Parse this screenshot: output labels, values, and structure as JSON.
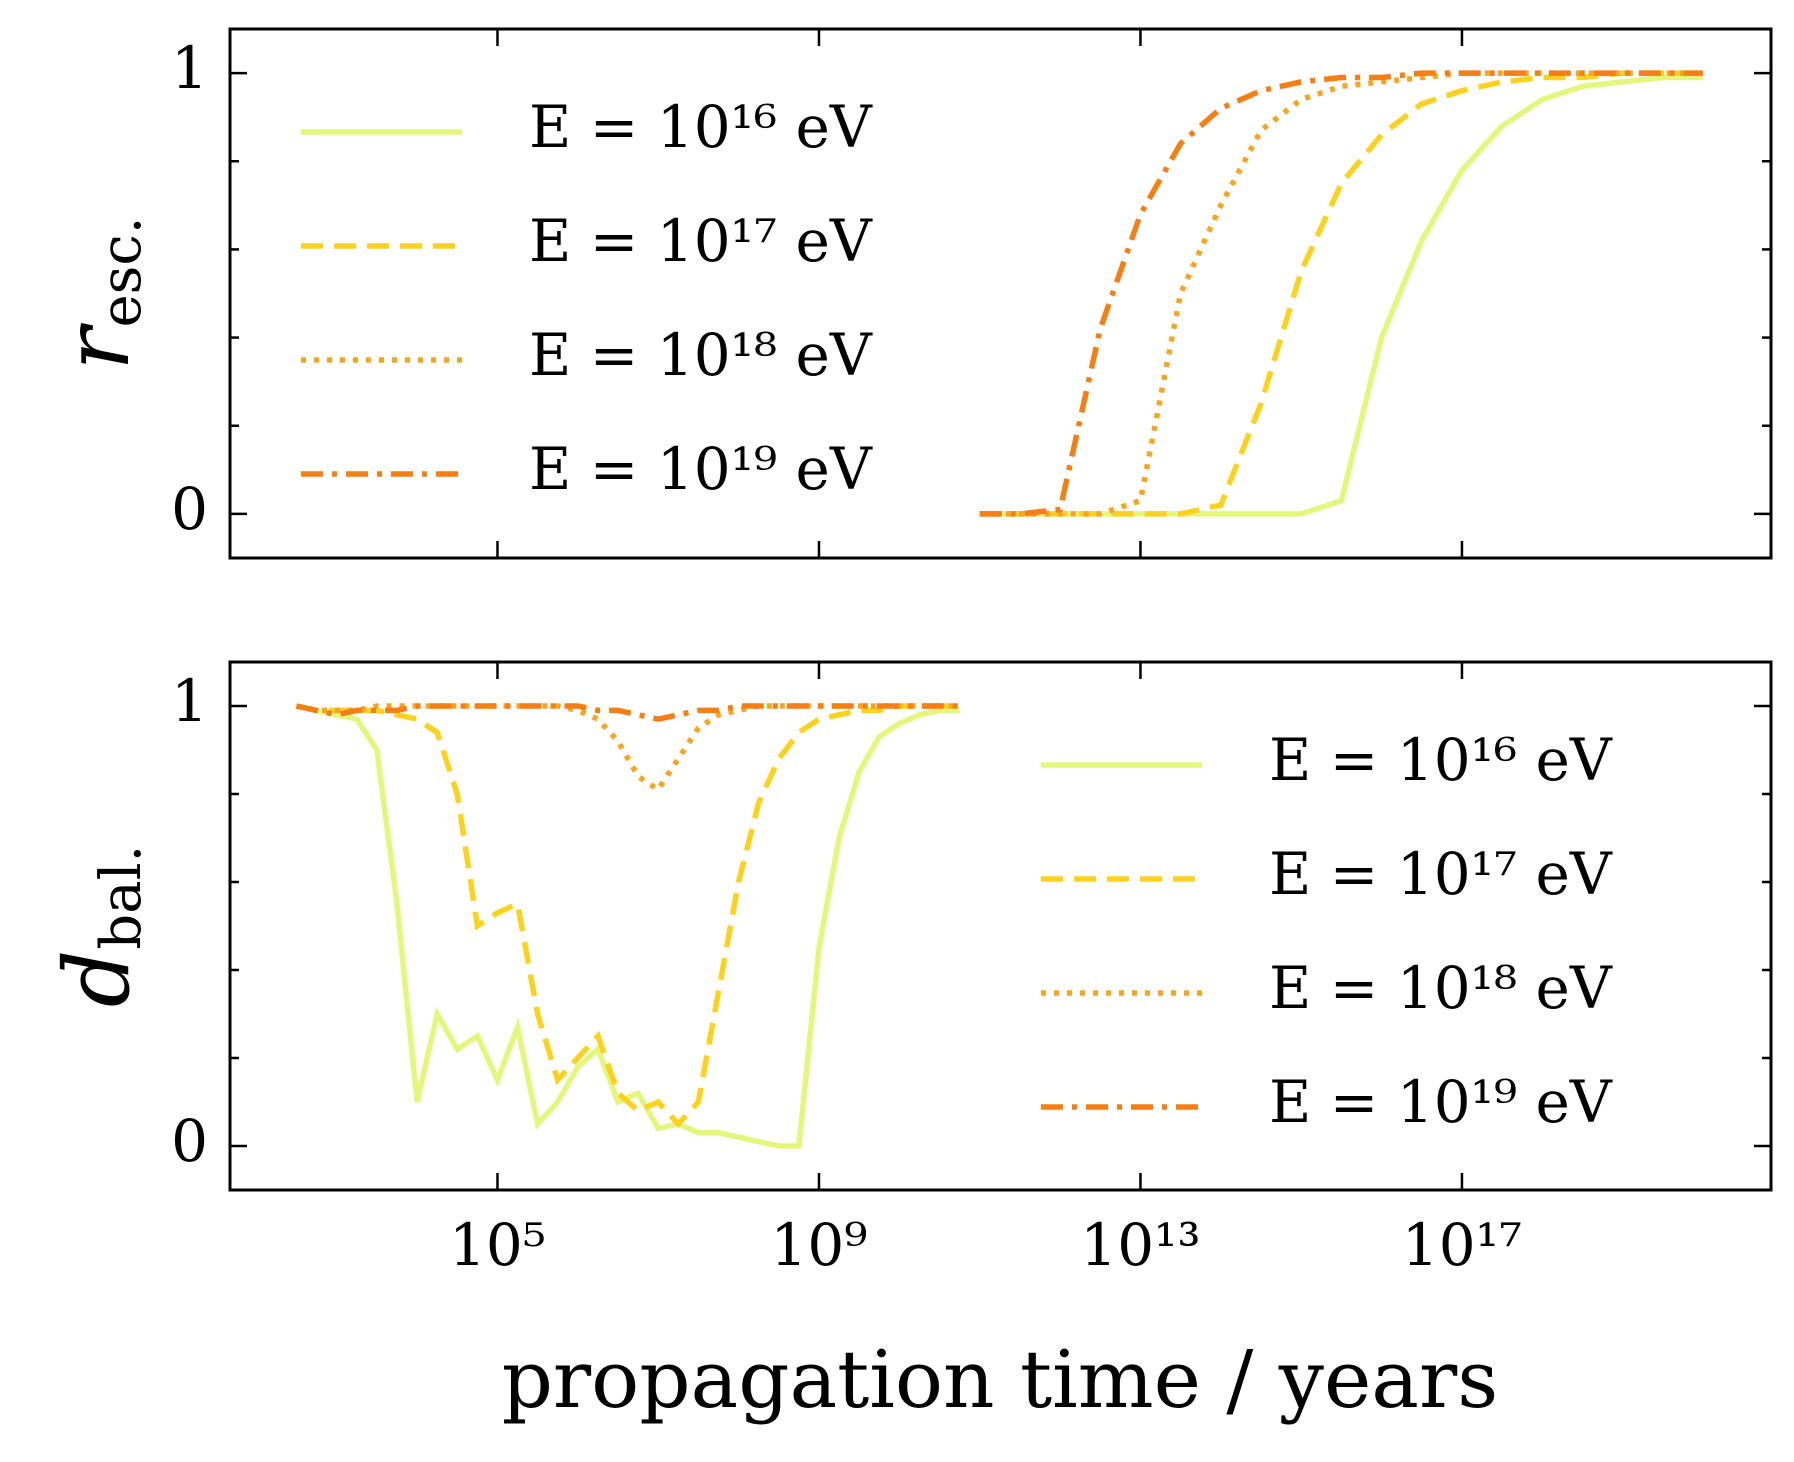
{
  "chart_data": [
    {
      "type": "line",
      "xscale": "log",
      "xlim": [
        47,
        7e+20
      ],
      "ylim": [
        -0.1,
        1.1
      ],
      "yticks": [
        0,
        1
      ],
      "yminor_ticks": [
        0.2,
        0.4,
        0.6,
        0.8
      ],
      "ylabel_symbol": "r",
      "ylabel_subscript": "esc.",
      "legend": "upper left",
      "x": [
        100000000000.0,
        316000000000.0,
        1000000000000.0,
        3160000000000.0,
        10000000000000.0,
        31600000000000.0,
        100000000000000.0,
        316000000000000.0,
        1000000000000000.0,
        3160000000000000.0,
        1e+16,
        3.16e+16,
        1e+17,
        3.16e+17,
        1e+18,
        3.16e+18,
        1e+19,
        3.16e+19,
        1e+20
      ],
      "series": [
        {
          "name": "E = 10¹⁶ eV",
          "color": "#e4f77c",
          "linestyle": "solid",
          "values": [
            0,
            0,
            0,
            0,
            0,
            0,
            0,
            0,
            0,
            0.03,
            0.4,
            0.62,
            0.78,
            0.88,
            0.94,
            0.97,
            0.98,
            0.99,
            0.99
          ]
        },
        {
          "name": "E = 10¹⁷ eV",
          "color": "#fcd21e",
          "linestyle": "dashed",
          "values": [
            0,
            0,
            0,
            0,
            0,
            0,
            0.02,
            0.25,
            0.55,
            0.75,
            0.86,
            0.93,
            0.96,
            0.98,
            0.99,
            0.99,
            1,
            1,
            1
          ]
        },
        {
          "name": "E = 10¹⁸ eV",
          "color": "#f7a41f",
          "linestyle": "dotted",
          "values": [
            0,
            0,
            0,
            0,
            0.03,
            0.5,
            0.7,
            0.87,
            0.94,
            0.97,
            0.98,
            0.99,
            1,
            1,
            1,
            1,
            1,
            1,
            1
          ]
        },
        {
          "name": "E = 10¹⁹ eV",
          "color": "#f57f14",
          "linestyle": "dashdot",
          "values": [
            0,
            0,
            0.01,
            0.42,
            0.68,
            0.84,
            0.92,
            0.96,
            0.98,
            0.99,
            0.99,
            1,
            1,
            1,
            1,
            1,
            1,
            1,
            1
          ]
        }
      ]
    },
    {
      "type": "line",
      "xscale": "log",
      "xlim": [
        47,
        7e+20
      ],
      "ylim": [
        -0.1,
        1.1
      ],
      "yticks": [
        0,
        1
      ],
      "yminor_ticks": [
        0.2,
        0.4,
        0.6,
        0.8
      ],
      "ylabel_symbol": "d",
      "ylabel_subscript": "bal.",
      "legend": "lower right",
      "xlabel": "propagation time / years",
      "xticks": [
        {
          "value": 100000.0,
          "label": "10⁵"
        },
        {
          "value": 1000000000.0,
          "label": "10⁹"
        },
        {
          "value": 10000000000000.0,
          "label": "10¹³"
        },
        {
          "value": 1e+17,
          "label": "10¹⁷"
        }
      ],
      "x": [
        316,
        562,
        1000.0,
        1780.0,
        3160.0,
        5620.0,
        10000.0,
        17800.0,
        31600.0,
        56200.0,
        100000.0,
        178000.0,
        316000.0,
        562000.0,
        1000000.0,
        1780000.0,
        3160000.0,
        5620000.0,
        10000000.0,
        17800000.0,
        31600000.0,
        56200000.0,
        100000000.0,
        178000000.0,
        316000000.0,
        562000000.0,
        1000000000.0,
        1780000000.0,
        3160000000.0,
        5620000000.0,
        10000000000.0,
        17800000000.0,
        31600000000.0,
        56200000000.0
      ],
      "series": [
        {
          "name": "E = 10¹⁶ eV",
          "color": "#e4f77c",
          "linestyle": "solid",
          "values": [
            1.0,
            0.99,
            0.98,
            0.97,
            0.9,
            0.55,
            0.1,
            0.3,
            0.22,
            0.25,
            0.15,
            0.27,
            0.05,
            0.1,
            0.18,
            0.22,
            0.1,
            0.12,
            0.04,
            0.05,
            0.03,
            0.03,
            0.02,
            0.01,
            0.0,
            0.0,
            0.45,
            0.7,
            0.85,
            0.93,
            0.96,
            0.98,
            0.99,
            0.99
          ]
        },
        {
          "name": "E = 10¹⁷ eV",
          "color": "#fcd21e",
          "linestyle": "dashed",
          "values": [
            1,
            0.99,
            0.99,
            0.99,
            0.99,
            0.98,
            0.97,
            0.94,
            0.8,
            0.5,
            0.53,
            0.55,
            0.3,
            0.15,
            0.2,
            0.25,
            0.12,
            0.08,
            0.1,
            0.05,
            0.1,
            0.35,
            0.6,
            0.78,
            0.88,
            0.94,
            0.97,
            0.98,
            0.99,
            0.99,
            1,
            1,
            1,
            1
          ]
        },
        {
          "name": "E = 10¹⁸ eV",
          "color": "#f7a41f",
          "linestyle": "dotted",
          "values": [
            1,
            0.99,
            0.99,
            0.99,
            1,
            1,
            1,
            1,
            1,
            1,
            1,
            1,
            1,
            1,
            0.99,
            0.97,
            0.92,
            0.84,
            0.81,
            0.88,
            0.95,
            0.98,
            0.99,
            1,
            1,
            1,
            1,
            1,
            1,
            1,
            1,
            1,
            1,
            1
          ]
        },
        {
          "name": "E = 10¹⁹ eV",
          "color": "#f57f14",
          "linestyle": "dashdot",
          "values": [
            1,
            0.99,
            0.98,
            0.99,
            0.99,
            0.99,
            1,
            1,
            1,
            1,
            1,
            1,
            1,
            1,
            1,
            0.99,
            0.99,
            0.98,
            0.97,
            0.98,
            0.99,
            0.99,
            1,
            1,
            1,
            1,
            1,
            1,
            1,
            1,
            1,
            1,
            1,
            1
          ]
        }
      ]
    }
  ]
}
